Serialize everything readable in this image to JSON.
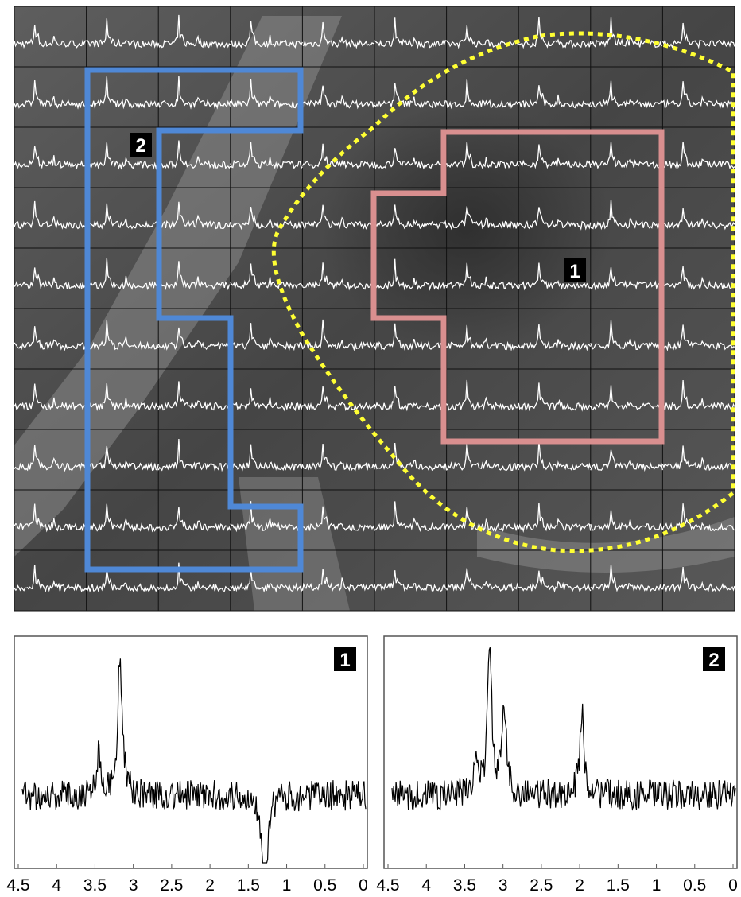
{
  "chart_data": [
    {
      "type": "line",
      "grid": true,
      "rows": 10,
      "cols": 10,
      "rois": [
        {
          "label": "1",
          "color": "#d98f8f",
          "style": "solid"
        },
        {
          "label": "2",
          "color": "#4f88d6",
          "style": "solid"
        },
        {
          "label": "",
          "color": "#ffff33",
          "style": "dotted"
        }
      ]
    },
    {
      "type": "line",
      "badge": "1",
      "xlim": [
        4.5,
        0
      ],
      "x_ticks": [
        "4.5",
        "4",
        "3.5",
        "3",
        "2.5",
        "2",
        "1.5",
        "1",
        "0.5",
        "0"
      ],
      "peaks": [
        {
          "x": 3.22,
          "y": 1.0
        },
        {
          "x": 3.5,
          "y": 0.3
        },
        {
          "x": 1.32,
          "y": -0.85
        }
      ]
    },
    {
      "type": "line",
      "badge": "2",
      "xlim": [
        4.5,
        0
      ],
      "x_ticks": [
        "4.5",
        "4",
        "3.5",
        "3",
        "2.5",
        "2",
        "1.5",
        "1",
        "0.5",
        "0"
      ],
      "peaks": [
        {
          "x": 3.22,
          "y": 1.0
        },
        {
          "x": 3.03,
          "y": 0.6
        },
        {
          "x": 2.01,
          "y": 0.58
        },
        {
          "x": 3.4,
          "y": 0.25
        }
      ]
    }
  ]
}
